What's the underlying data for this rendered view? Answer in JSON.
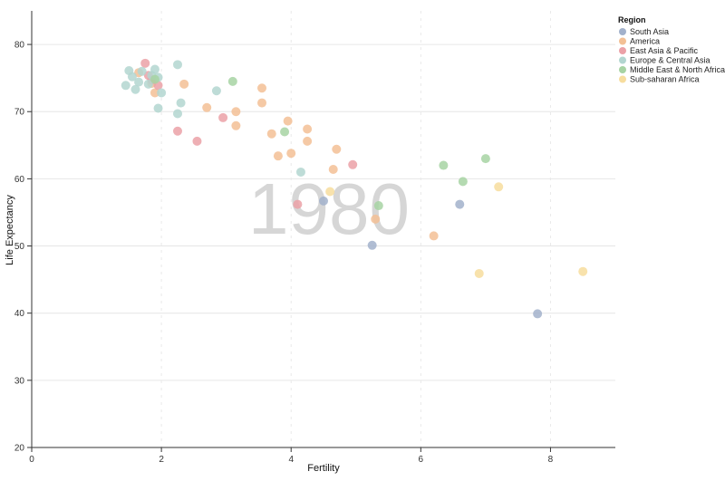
{
  "chart_data": {
    "type": "scatter",
    "title": "",
    "year": "1980",
    "xlabel": "Fertility",
    "ylabel": "Life Expectancy",
    "xlim": [
      0,
      9
    ],
    "ylim": [
      20,
      85
    ],
    "xticks": [
      0,
      2,
      4,
      6,
      8
    ],
    "yticks": [
      20,
      30,
      40,
      50,
      60,
      70,
      80
    ],
    "grid": true,
    "legend_title": "Region",
    "legend_position": "top-right",
    "series": [
      {
        "name": "South Asia",
        "color": "#a2b1cb",
        "points": [
          {
            "x": 5.25,
            "y": 50.1
          },
          {
            "x": 6.6,
            "y": 56.2
          },
          {
            "x": 7.8,
            "y": 39.9
          },
          {
            "x": 4.5,
            "y": 56.7
          }
        ]
      },
      {
        "name": "America",
        "color": "#f3c095",
        "points": [
          {
            "x": 1.65,
            "y": 75.8
          },
          {
            "x": 1.85,
            "y": 74.2
          },
          {
            "x": 1.9,
            "y": 72.8
          },
          {
            "x": 2.35,
            "y": 74.1
          },
          {
            "x": 2.7,
            "y": 70.6
          },
          {
            "x": 3.15,
            "y": 70.0
          },
          {
            "x": 3.15,
            "y": 67.9
          },
          {
            "x": 3.55,
            "y": 73.5
          },
          {
            "x": 3.55,
            "y": 71.3
          },
          {
            "x": 3.7,
            "y": 66.7
          },
          {
            "x": 3.8,
            "y": 63.4
          },
          {
            "x": 3.95,
            "y": 68.6
          },
          {
            "x": 4.0,
            "y": 63.8
          },
          {
            "x": 4.25,
            "y": 67.4
          },
          {
            "x": 4.25,
            "y": 65.6
          },
          {
            "x": 4.65,
            "y": 61.4
          },
          {
            "x": 4.7,
            "y": 64.4
          },
          {
            "x": 5.3,
            "y": 54.0
          },
          {
            "x": 6.2,
            "y": 51.5
          }
        ]
      },
      {
        "name": "East Asia & Pacific",
        "color": "#eba1a7",
        "points": [
          {
            "x": 1.75,
            "y": 77.2
          },
          {
            "x": 1.8,
            "y": 75.4
          },
          {
            "x": 1.85,
            "y": 74.7
          },
          {
            "x": 1.95,
            "y": 73.9
          },
          {
            "x": 2.25,
            "y": 67.1
          },
          {
            "x": 2.55,
            "y": 65.6
          },
          {
            "x": 2.95,
            "y": 69.1
          },
          {
            "x": 4.1,
            "y": 56.2
          },
          {
            "x": 4.95,
            "y": 62.1
          }
        ]
      },
      {
        "name": "Europe & Central Asia",
        "color": "#b3d6d0",
        "points": [
          {
            "x": 1.45,
            "y": 73.9
          },
          {
            "x": 1.5,
            "y": 76.1
          },
          {
            "x": 1.55,
            "y": 75.2
          },
          {
            "x": 1.6,
            "y": 73.3
          },
          {
            "x": 1.65,
            "y": 74.4
          },
          {
            "x": 1.7,
            "y": 76.0
          },
          {
            "x": 1.8,
            "y": 74.1
          },
          {
            "x": 1.85,
            "y": 75.4
          },
          {
            "x": 1.9,
            "y": 76.3
          },
          {
            "x": 1.95,
            "y": 70.5
          },
          {
            "x": 1.95,
            "y": 75.1
          },
          {
            "x": 2.0,
            "y": 72.8
          },
          {
            "x": 2.25,
            "y": 77.0
          },
          {
            "x": 2.25,
            "y": 69.7
          },
          {
            "x": 2.3,
            "y": 71.3
          },
          {
            "x": 2.85,
            "y": 73.1
          },
          {
            "x": 4.15,
            "y": 61.0
          }
        ]
      },
      {
        "name": "Middle East & North Africa",
        "color": "#a7d3a3",
        "points": [
          {
            "x": 1.9,
            "y": 74.8
          },
          {
            "x": 3.1,
            "y": 74.5
          },
          {
            "x": 3.9,
            "y": 67.0
          },
          {
            "x": 5.35,
            "y": 56.0
          },
          {
            "x": 6.35,
            "y": 62.0
          },
          {
            "x": 6.65,
            "y": 59.6
          },
          {
            "x": 7.0,
            "y": 63.0
          }
        ]
      },
      {
        "name": "Sub-saharan Africa",
        "color": "#f7dd9e",
        "points": [
          {
            "x": 4.6,
            "y": 58.1
          },
          {
            "x": 6.9,
            "y": 45.9
          },
          {
            "x": 7.2,
            "y": 58.8
          },
          {
            "x": 8.5,
            "y": 46.2
          }
        ]
      }
    ]
  }
}
